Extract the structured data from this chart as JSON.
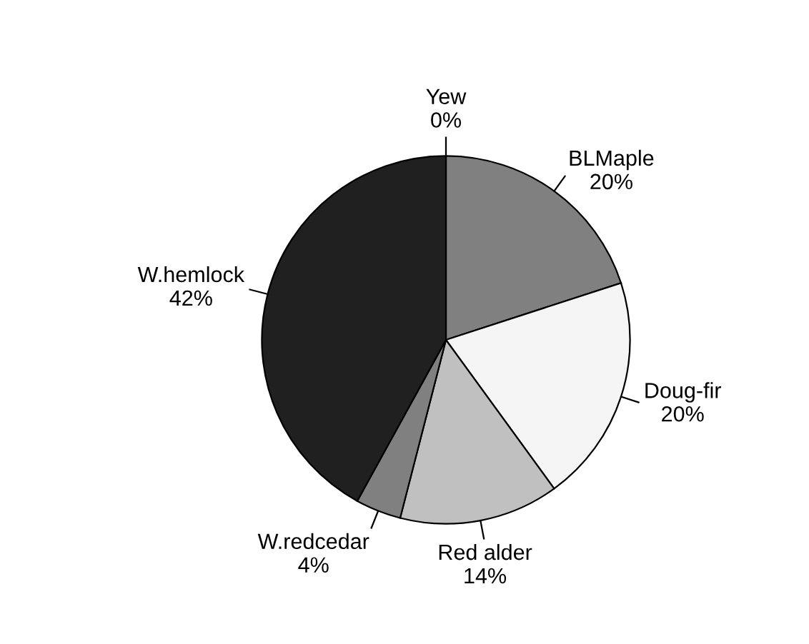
{
  "chart_data": {
    "type": "pie",
    "categories": [
      "Yew",
      "BLMaple",
      "Doug-fir",
      "Red alder",
      "W.redcedar",
      "W.hemlock"
    ],
    "values": [
      0,
      20,
      20,
      14,
      4,
      42
    ],
    "value_labels": [
      "0%",
      "20%",
      "20%",
      "14%",
      "4%",
      "42%"
    ],
    "colors": [
      "#ffffff",
      "#808080",
      "#f5f5f5",
      "#c0c0c0",
      "#808080",
      "#202020"
    ]
  }
}
